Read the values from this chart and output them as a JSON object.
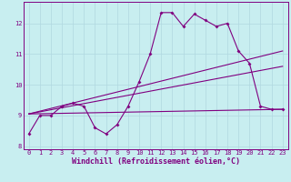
{
  "xlabel": "Windchill (Refroidissement éolien,°C)",
  "background_color": "#c8eef0",
  "line_color": "#800080",
  "grid_color": "#b0d8e0",
  "xlim": [
    -0.5,
    23.5
  ],
  "ylim": [
    7.9,
    12.7
  ],
  "yticks": [
    8,
    9,
    10,
    11,
    12
  ],
  "xticks": [
    0,
    1,
    2,
    3,
    4,
    5,
    6,
    7,
    8,
    9,
    10,
    11,
    12,
    13,
    14,
    15,
    16,
    17,
    18,
    19,
    20,
    21,
    22,
    23
  ],
  "series1_x": [
    0,
    1,
    2,
    3,
    4,
    5,
    6,
    7,
    8,
    9,
    10,
    11,
    12,
    13,
    14,
    15,
    16,
    17,
    18,
    19,
    20,
    21,
    22,
    23
  ],
  "series1_y": [
    8.4,
    9.0,
    9.0,
    9.3,
    9.4,
    9.3,
    8.6,
    8.4,
    8.7,
    9.3,
    10.1,
    11.0,
    12.35,
    12.35,
    11.9,
    12.3,
    12.1,
    11.9,
    12.0,
    11.1,
    10.7,
    9.3,
    9.2,
    9.2
  ],
  "series2_x": [
    0,
    23
  ],
  "series2_y": [
    9.05,
    9.2
  ],
  "series3_x": [
    0,
    23
  ],
  "series3_y": [
    9.05,
    10.6
  ],
  "series4_x": [
    0,
    23
  ],
  "series4_y": [
    9.05,
    11.1
  ],
  "tick_fontsize": 5.0,
  "xlabel_fontsize": 6.0
}
